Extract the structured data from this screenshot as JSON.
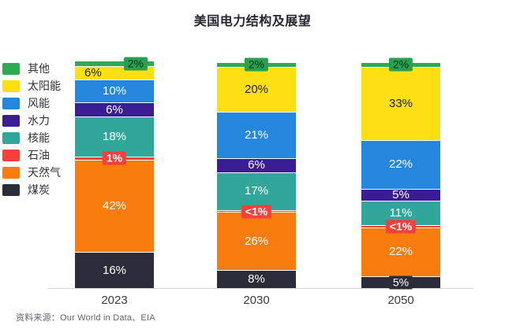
{
  "chart_data": {
    "type": "bar",
    "stacked": true,
    "title": "美国电力结构及展望",
    "categories": [
      "2023",
      "2030",
      "2050"
    ],
    "unit": "%",
    "stack_order_top_to_bottom": [
      "其他",
      "太阳能",
      "风能",
      "水力",
      "核能",
      "石油",
      "天然气",
      "煤炭"
    ],
    "series": [
      {
        "name": "其他",
        "color": "#2faa53",
        "values": [
          2,
          2,
          2
        ],
        "display": [
          "2%",
          "2%",
          "2%"
        ]
      },
      {
        "name": "太阳能",
        "color": "#fde011",
        "values": [
          6,
          20,
          33
        ],
        "display": [
          "6%",
          "20%",
          "33%"
        ]
      },
      {
        "name": "风能",
        "color": "#2586dd",
        "values": [
          10,
          21,
          22
        ],
        "display": [
          "10%",
          "21%",
          "22%"
        ]
      },
      {
        "name": "水力",
        "color": "#3a1d92",
        "values": [
          6,
          6,
          5
        ],
        "display": [
          "6%",
          "6%",
          "5%"
        ]
      },
      {
        "name": "核能",
        "color": "#31a69a",
        "values": [
          18,
          17,
          11
        ],
        "display": [
          "18%",
          "17%",
          "11%"
        ]
      },
      {
        "name": "石油",
        "color": "#f4413c",
        "values": [
          1,
          0.5,
          0.5
        ],
        "display": [
          "1%",
          "<1%",
          "<1%"
        ]
      },
      {
        "name": "天然气",
        "color": "#f97c0f",
        "values": [
          42,
          26,
          22
        ],
        "display": [
          "42%",
          "26%",
          "22%"
        ]
      },
      {
        "name": "煤炭",
        "color": "#2a2d39",
        "values": [
          16,
          8,
          5
        ],
        "display": [
          "16%",
          "8%",
          "5%"
        ]
      }
    ],
    "legend_position": "left",
    "axis": {
      "baseline_color": "#d6d6d6",
      "gridlines": false,
      "ylim": [
        0,
        100
      ]
    },
    "source": "资料来源：Our World in Data、EIA"
  }
}
